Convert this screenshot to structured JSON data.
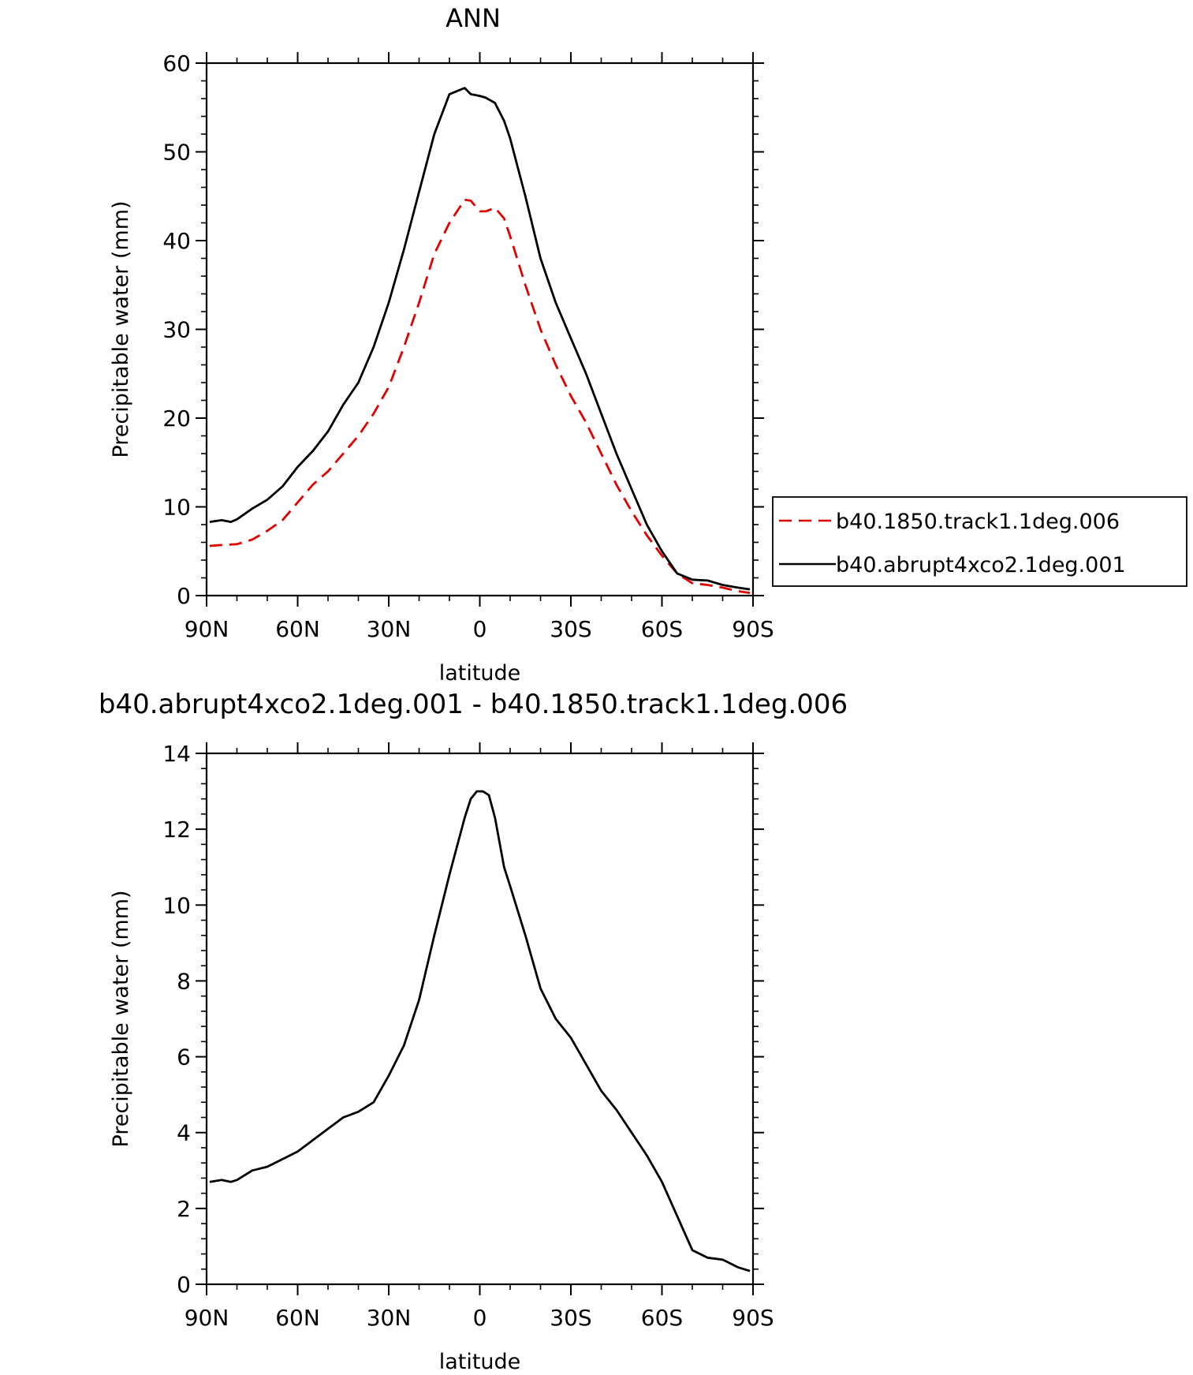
{
  "chart_data": [
    {
      "type": "line",
      "title": "ANN",
      "xlabel": "latitude",
      "ylabel": "Precipitable water (mm)",
      "xlim": [
        90,
        -90
      ],
      "ylim": [
        0,
        60
      ],
      "xticks": [
        90,
        60,
        30,
        0,
        -30,
        -60,
        -90
      ],
      "xtick_labels": [
        "90N",
        "60N",
        "30N",
        "0",
        "30S",
        "60S",
        "90S"
      ],
      "yticks": [
        0,
        10,
        20,
        30,
        40,
        50,
        60
      ],
      "ytick_labels": [
        "0",
        "10",
        "20",
        "30",
        "40",
        "50",
        "60"
      ],
      "legend_position": "right",
      "series": [
        {
          "name": "b40.1850.track1.1deg.006",
          "color": "#e00000",
          "dash": "dashed",
          "x": [
            89,
            85,
            80,
            75,
            70,
            65,
            60,
            55,
            50,
            45,
            40,
            35,
            30,
            25,
            20,
            15,
            10,
            5,
            3,
            0,
            -2,
            -5,
            -8,
            -10,
            -15,
            -20,
            -25,
            -30,
            -35,
            -40,
            -45,
            -50,
            -55,
            -60,
            -65,
            -70,
            -75,
            -80,
            -85,
            -89
          ],
          "y": [
            5.6,
            5.7,
            5.8,
            6.3,
            7.3,
            8.5,
            10.5,
            12.5,
            14.0,
            16.0,
            18.0,
            20.5,
            23.5,
            28.0,
            33.0,
            38.5,
            42.0,
            44.6,
            44.5,
            43.3,
            43.3,
            43.7,
            42.5,
            40.5,
            35.0,
            30.0,
            26.0,
            22.5,
            19.5,
            16.0,
            12.5,
            9.5,
            6.8,
            4.5,
            2.5,
            1.4,
            1.2,
            0.9,
            0.5,
            0.3
          ]
        },
        {
          "name": "b40.abrupt4xco2.1deg.001",
          "color": "#000000",
          "dash": "solid",
          "x": [
            89,
            85,
            82,
            80,
            75,
            70,
            65,
            60,
            55,
            50,
            45,
            40,
            35,
            30,
            25,
            20,
            15,
            10,
            5,
            3,
            0,
            -2,
            -5,
            -8,
            -10,
            -15,
            -20,
            -25,
            -30,
            -35,
            -40,
            -45,
            -50,
            -55,
            -60,
            -65,
            -70,
            -75,
            -80,
            -85,
            -89
          ],
          "y": [
            8.3,
            8.5,
            8.3,
            8.6,
            9.8,
            10.8,
            12.3,
            14.5,
            16.3,
            18.5,
            21.5,
            24.0,
            28.0,
            33.0,
            39.0,
            45.5,
            52.0,
            56.5,
            57.2,
            56.5,
            56.3,
            56.1,
            55.5,
            53.5,
            51.5,
            45.0,
            38.0,
            33.0,
            29.0,
            25.0,
            20.5,
            16.0,
            12.0,
            8.0,
            5.0,
            2.5,
            1.8,
            1.7,
            1.2,
            0.9,
            0.7
          ]
        }
      ]
    },
    {
      "type": "line",
      "title": "b40.abrupt4xco2.1deg.001 - b40.1850.track1.1deg.006",
      "xlabel": "latitude",
      "ylabel": "Precipitable water (mm)",
      "xlim": [
        90,
        -90
      ],
      "ylim": [
        0,
        14
      ],
      "xticks": [
        90,
        60,
        30,
        0,
        -30,
        -60,
        -90
      ],
      "xtick_labels": [
        "90N",
        "60N",
        "30N",
        "0",
        "30S",
        "60S",
        "90S"
      ],
      "yticks": [
        0,
        2,
        4,
        6,
        8,
        10,
        12,
        14
      ],
      "ytick_labels": [
        "0",
        "2",
        "4",
        "6",
        "8",
        "10",
        "12",
        "14"
      ],
      "series": [
        {
          "color": "#000000",
          "dash": "solid",
          "x": [
            89,
            85,
            82,
            80,
            75,
            70,
            65,
            60,
            55,
            50,
            45,
            40,
            35,
            30,
            25,
            20,
            15,
            10,
            5,
            3,
            1,
            -1,
            -3,
            -5,
            -8,
            -10,
            -15,
            -20,
            -25,
            -30,
            -35,
            -40,
            -45,
            -50,
            -55,
            -60,
            -65,
            -70,
            -75,
            -80,
            -85,
            -89
          ],
          "y": [
            2.7,
            2.75,
            2.7,
            2.75,
            3.0,
            3.1,
            3.3,
            3.5,
            3.8,
            4.1,
            4.4,
            4.55,
            4.8,
            5.5,
            6.3,
            7.5,
            9.2,
            10.8,
            12.3,
            12.8,
            13.0,
            13.0,
            12.9,
            12.3,
            11.0,
            10.5,
            9.2,
            7.8,
            7.0,
            6.5,
            5.8,
            5.1,
            4.6,
            4.0,
            3.4,
            2.7,
            1.8,
            0.9,
            0.7,
            0.65,
            0.45,
            0.35
          ]
        }
      ]
    }
  ]
}
